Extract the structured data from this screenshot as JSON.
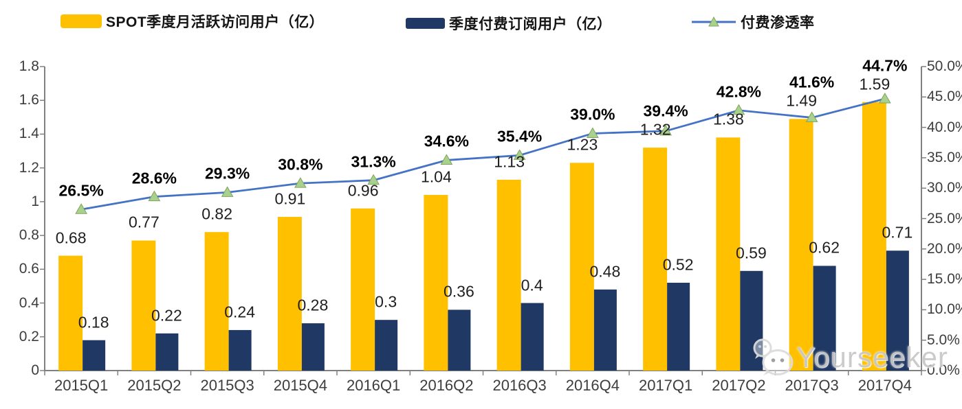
{
  "legend": {
    "items": [
      {
        "label": "SPOT季度月活跃访问用户（亿）",
        "swatch": "bar",
        "color": "#FFC000"
      },
      {
        "label": "季度付费订阅用户（亿）",
        "swatch": "bar",
        "color": "#1F3864"
      },
      {
        "label": "付费渗透率",
        "swatch": "line-triangle-marker",
        "color": "#4472C4",
        "marker_color": "#A9D18E"
      }
    ]
  },
  "watermark": {
    "icon": "wechat-icon",
    "text": "Yourseeker"
  },
  "chart_data": {
    "type": "bar",
    "subtype": "combo-bar-line-dual-axis",
    "title": "",
    "categories": [
      "2015Q1",
      "2015Q2",
      "2015Q3",
      "2015Q4",
      "2016Q1",
      "2016Q2",
      "2016Q3",
      "2016Q4",
      "2017Q1",
      "2017Q2",
      "2017Q3",
      "2017Q4"
    ],
    "series": [
      {
        "name": "SPOT季度月活跃访问用户（亿）",
        "type": "bar",
        "axis": "left",
        "color": "#FFC000",
        "values": [
          0.68,
          0.77,
          0.82,
          0.91,
          0.96,
          1.04,
          1.13,
          1.23,
          1.32,
          1.38,
          1.49,
          1.59
        ],
        "labels": [
          "0.68",
          "0.77",
          "0.82",
          "0.91",
          "0.96",
          "1.04",
          "1.13",
          "1.23",
          "1.32",
          "1.38",
          "1.49",
          "1.59"
        ]
      },
      {
        "name": "季度付费订阅用户（亿）",
        "type": "bar",
        "axis": "left",
        "color": "#1F3864",
        "values": [
          0.18,
          0.22,
          0.24,
          0.28,
          0.3,
          0.36,
          0.4,
          0.48,
          0.52,
          0.59,
          0.62,
          0.71
        ],
        "labels": [
          "0.18",
          "0.22",
          "0.24",
          "0.28",
          "0.3",
          "0.36",
          "0.4",
          "0.48",
          "0.52",
          "0.59",
          "0.62",
          "0.71"
        ]
      },
      {
        "name": "付费渗透率",
        "type": "line",
        "axis": "right",
        "color": "#4472C4",
        "marker": "triangle",
        "marker_color": "#A9D18E",
        "values": [
          26.5,
          28.6,
          29.3,
          30.8,
          31.3,
          34.6,
          35.4,
          39.0,
          39.4,
          42.8,
          41.6,
          44.7
        ],
        "labels": [
          "26.5%",
          "28.6%",
          "29.3%",
          "30.8%",
          "31.3%",
          "34.6%",
          "35.4%",
          "39.0%",
          "39.4%",
          "42.8%",
          "41.6%",
          "44.7%"
        ]
      }
    ],
    "left_axis": {
      "min": 0,
      "max": 1.8,
      "tick_labels": [
        "0",
        "0.2",
        "0.4",
        "0.6",
        "0.8",
        "1",
        "1.2",
        "1.4",
        "1.6",
        "1.8"
      ]
    },
    "right_axis": {
      "min": 0,
      "max": 50,
      "tick_labels": [
        "0.0%",
        "5.0%",
        "10.0%",
        "15.0%",
        "20.0%",
        "25.0%",
        "30.0%",
        "35.0%",
        "40.0%",
        "45.0%",
        "50.0%"
      ]
    },
    "grid": false,
    "legend_position": "top",
    "axis_color": "#808080"
  }
}
